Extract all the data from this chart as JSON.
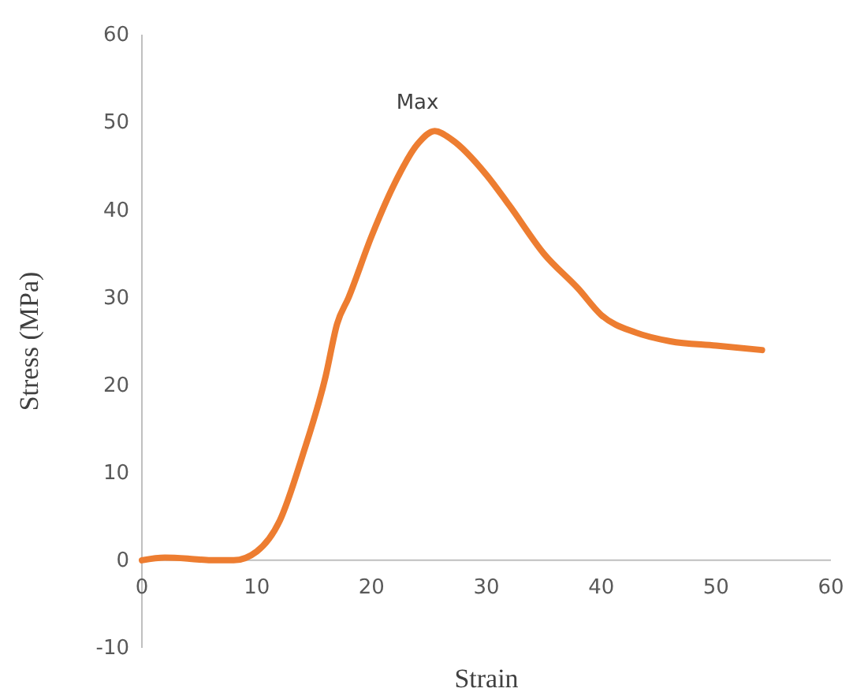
{
  "chart_data": {
    "type": "line",
    "xlabel": "Strain",
    "ylabel": "Stress (MPa)",
    "xlim": [
      0,
      60
    ],
    "xticks": [
      0,
      10,
      20,
      30,
      40,
      50,
      60
    ],
    "ylim": [
      -10,
      60
    ],
    "yticks": [
      -10,
      0,
      10,
      20,
      30,
      40,
      50,
      60
    ],
    "grid": false,
    "marker": "none",
    "line_style": "solid",
    "series": [
      {
        "color": "#ed7d31",
        "x": [
          0,
          2,
          4,
          6,
          8,
          10,
          12,
          14,
          16,
          17,
          18,
          20,
          22,
          24,
          25.5,
          27,
          30,
          32,
          35,
          38,
          40,
          43,
          46,
          50,
          54
        ],
        "values": [
          0,
          0.3,
          0.2,
          0,
          0,
          1,
          4.5,
          12,
          21,
          27,
          30,
          37,
          43,
          47.5,
          49,
          48,
          44,
          40.5,
          35,
          31,
          28,
          26,
          25,
          24.5,
          24
        ]
      }
    ],
    "annotations": [
      {
        "text": "Max",
        "x": 24,
        "y": 49
      }
    ]
  }
}
